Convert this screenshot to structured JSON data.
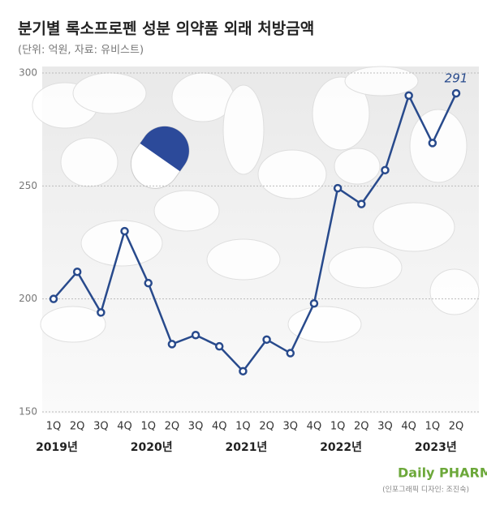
{
  "chart_data": {
    "type": "line",
    "title": "분기별 록소프로펜 성분 의약품 외래 처방금액",
    "subtitle": "(단위: 억원, 자료: 유비스트)",
    "categories": [
      "1Q",
      "2Q",
      "3Q",
      "4Q",
      "1Q",
      "2Q",
      "3Q",
      "4Q",
      "1Q",
      "2Q",
      "3Q",
      "4Q",
      "1Q",
      "2Q",
      "3Q",
      "4Q",
      "1Q",
      "2Q"
    ],
    "years": [
      "2019년",
      "2020년",
      "2021년",
      "2022년",
      "2023년"
    ],
    "series": [
      {
        "name": "외래 처방금액",
        "color": "#284a8c",
        "values": [
          200,
          212,
          194,
          230,
          207,
          180,
          184,
          179,
          168,
          182,
          176,
          198,
          249,
          242,
          257,
          290,
          269,
          291
        ],
        "value_labels": [
          null,
          null,
          null,
          null,
          null,
          null,
          null,
          null,
          null,
          null,
          null,
          null,
          null,
          null,
          null,
          null,
          null,
          "291"
        ]
      }
    ],
    "ylim": [
      150,
      300
    ],
    "yticks": [
      150,
      200,
      250,
      300
    ],
    "grid": true,
    "logo": "Daily PHARM",
    "credit": "(인포그래픽 디자인: 조진숙)"
  }
}
